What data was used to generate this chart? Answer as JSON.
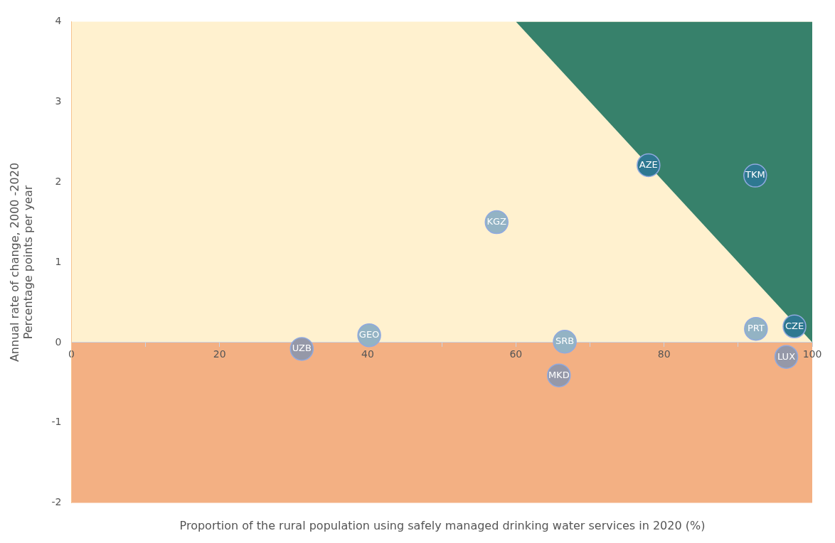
{
  "chart_data": {
    "type": "scatter",
    "xlabel": "Proportion of the rural population using safely managed drinking water services in 2020 (%)",
    "ylabel": "Annual rate of change, 2000 -2020\nPercentage points per year",
    "xlim": [
      0,
      100
    ],
    "ylim": [
      -2,
      4
    ],
    "xticks": [
      0,
      {
        "value": 10,
        "label": null
      },
      20,
      {
        "value": 30,
        "label": null
      },
      40,
      {
        "value": 50,
        "label": null
      },
      60,
      {
        "value": 70,
        "label": null
      },
      80,
      {
        "value": 90,
        "label": null
      },
      100
    ],
    "yticks": [
      -2,
      -1,
      0,
      1,
      2,
      3,
      4
    ],
    "grid": false,
    "legend": false,
    "bands": [
      {
        "axis": "y",
        "from": 0,
        "to": 4,
        "color": "#fff1cf"
      },
      {
        "axis": "y",
        "from": -2,
        "to": 0,
        "color": "#f3b083"
      }
    ],
    "series": [
      {
        "marker": "circle",
        "x": [
          31.1,
          40.2,
          57.4,
          66.6,
          65.8,
          77.9,
          92.3,
          92.4,
          97.6,
          96.5
        ],
        "values": [
          -0.08,
          0.09,
          1.5,
          0.01,
          -0.41,
          2.21,
          2.08,
          0.17,
          0.2,
          -0.18
        ],
        "colors": [
          "#9598a8",
          "#93b3c4",
          "#93b3c4",
          "#93b3c4",
          "#9598a8",
          "#2e7891",
          "#2e7891",
          "#93b3c4",
          "#2e7891",
          "#9598a8"
        ]
      },
      {
        "type": "area",
        "color": "#37816b",
        "x": [
          60,
          100
        ],
        "values": [
          4,
          0
        ]
      }
    ],
    "annotations": [
      {
        "text": "UZB",
        "x": 31.1,
        "y": -0.08
      },
      {
        "text": "GEO",
        "x": 40.2,
        "y": 0.09
      },
      {
        "text": "KGZ",
        "x": 57.4,
        "y": 1.5
      },
      {
        "text": "SRB",
        "x": 66.6,
        "y": 0.01
      },
      {
        "text": "MKD",
        "x": 65.8,
        "y": -0.41
      },
      {
        "text": "AZE",
        "x": 77.9,
        "y": 2.21
      },
      {
        "text": "TKM",
        "x": 92.3,
        "y": 2.08
      },
      {
        "text": "PRT",
        "x": 92.4,
        "y": 0.17
      },
      {
        "text": "CZE",
        "x": 97.6,
        "y": 0.2
      },
      {
        "text": "LUX",
        "x": 96.5,
        "y": -0.18
      }
    ]
  }
}
